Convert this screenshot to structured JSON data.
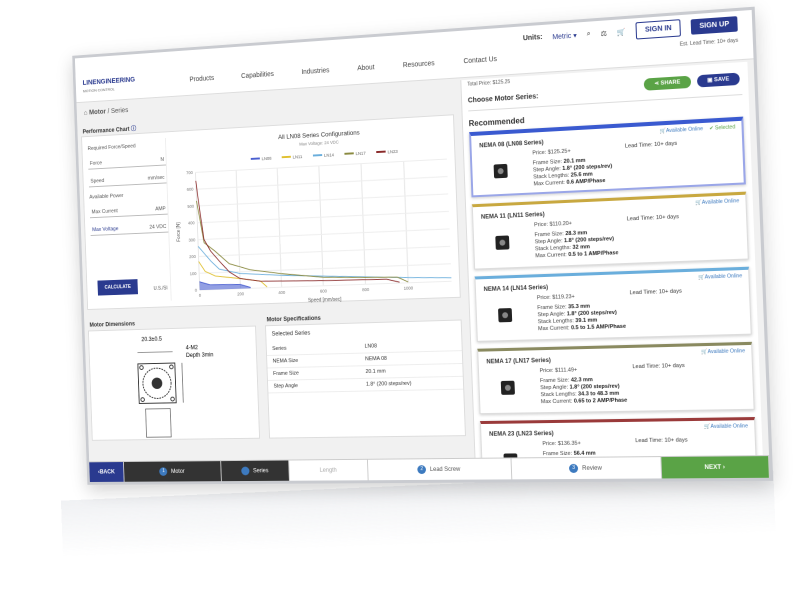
{
  "header": {
    "logo": "LINENGINEERING",
    "logo_sub": "MOTION CONTROL",
    "nav": [
      "Products",
      "Capabilities",
      "Industries",
      "About",
      "Resources",
      "Contact Us"
    ],
    "units_label": "Units:",
    "units_value": "Metric",
    "sign_in": "SIGN IN",
    "sign_up": "SIGN UP",
    "lead_time": "Est. Lead Time: 10+ days"
  },
  "breadcrumb": {
    "home": "Motor",
    "current": "Series"
  },
  "performance": {
    "title": "Performance Chart",
    "form": {
      "heading": "Required Force/Speed",
      "force_label": "Force",
      "force_unit": "N",
      "speed_label": "Speed",
      "speed_unit": "mm/sec",
      "avail_heading": "Available Power",
      "current_label": "Max Current",
      "current_unit": "AMP",
      "voltage_label": "Max Voltage",
      "voltage_value": "24 VDC",
      "calculate": "CALCULATE",
      "units": "U.S./SI"
    }
  },
  "chart_data": {
    "type": "line",
    "title": "All LN08 Series Configurations",
    "subtitle": "Max Voltage: 24 VDC",
    "xlabel": "Speed [mm/sec]",
    "ylabel": "Force [N]",
    "xlim": [
      0,
      1200
    ],
    "ylim": [
      0,
      700
    ],
    "xticks": [
      0,
      200,
      400,
      600,
      800,
      1000
    ],
    "yticks": [
      0,
      100,
      200,
      300,
      400,
      500,
      600,
      700
    ],
    "grid": true,
    "legend": "top",
    "series": [
      {
        "name": "LN08",
        "color": "#4a5fd0",
        "area": true,
        "points": [
          [
            0,
            50
          ],
          [
            50,
            30
          ],
          [
            200,
            25
          ],
          [
            250,
            5
          ]
        ]
      },
      {
        "name": "LN11",
        "color": "#e0c030",
        "points": [
          [
            0,
            170
          ],
          [
            30,
            110
          ],
          [
            80,
            80
          ],
          [
            200,
            60
          ],
          [
            300,
            40
          ],
          [
            330,
            5
          ]
        ]
      },
      {
        "name": "LN14",
        "color": "#6aaedc",
        "points": [
          [
            0,
            260
          ],
          [
            20,
            230
          ],
          [
            60,
            170
          ],
          [
            100,
            120
          ],
          [
            200,
            90
          ],
          [
            400,
            70
          ],
          [
            700,
            50
          ],
          [
            1000,
            30
          ],
          [
            1200,
            20
          ]
        ]
      },
      {
        "name": "LN17",
        "color": "#8a8a40",
        "points": [
          [
            0,
            530
          ],
          [
            30,
            280
          ],
          [
            80,
            230
          ],
          [
            150,
            150
          ],
          [
            250,
            110
          ],
          [
            400,
            80
          ],
          [
            600,
            50
          ],
          [
            800,
            40
          ],
          [
            950,
            35
          ],
          [
            1000,
            5
          ]
        ]
      },
      {
        "name": "LN23",
        "color": "#8a2a2a",
        "points": [
          [
            0,
            650
          ],
          [
            10,
            520
          ],
          [
            30,
            300
          ],
          [
            60,
            230
          ],
          [
            100,
            170
          ],
          [
            150,
            100
          ],
          [
            200,
            60
          ],
          [
            300,
            40
          ],
          [
            600,
            30
          ],
          [
            900,
            25
          ],
          [
            960,
            5
          ]
        ]
      }
    ]
  },
  "dimensions": {
    "title": "Motor Dimensions",
    "d1": "20.3±0.5",
    "d2": "4-M2",
    "d3": "Depth 3min"
  },
  "specs": {
    "title": "Motor Specifications",
    "heading": "Selected Series",
    "rows": [
      [
        "Series",
        "LN08"
      ],
      [
        "NEMA Size",
        "NEMA 08"
      ],
      [
        "Frame Size",
        "20.1 mm"
      ],
      [
        "Step Angle",
        "1.8° (200 steps/rev)"
      ]
    ]
  },
  "right": {
    "total_price": "Total Price: $125.25",
    "share": "SHARE",
    "save": "SAVE",
    "choose": "Choose Motor Series:",
    "recommended": "Recommended",
    "available": "Available Online",
    "selected": "Selected",
    "cards": [
      {
        "title": "NEMA 08 (LN08 Series)",
        "color": "#3a5ad0",
        "price": "Price: $125.25+",
        "lead": "Lead Time: 10+ days",
        "frame": "20.1 mm",
        "step": "1.8° (200 steps/rev)",
        "stack": "25.6 mm",
        "current": "0.6 AMP/Phase"
      },
      {
        "title": "NEMA 11 (LN11 Series)",
        "color": "#c8a840",
        "price": "Price: $110.20+",
        "lead": "Lead Time: 10+ days",
        "frame": "28.3 mm",
        "step": "1.8° (200 steps/rev)",
        "stack": "32 mm",
        "current": "0.5 to 1 AMP/Phase"
      },
      {
        "title": "NEMA 14 (LN14 Series)",
        "color": "#6aaedc",
        "price": "Price: $119.23+",
        "lead": "Lead Time: 10+ days",
        "frame": "35.3 mm",
        "step": "1.8° (200 steps/rev)",
        "stack": "39.1 mm",
        "current": "0.5 to 1.5 AMP/Phase"
      },
      {
        "title": "NEMA 17 (LN17 Series)",
        "color": "#8a8a60",
        "price": "Price: $111.49+",
        "lead": "Lead Time: 10+ days",
        "frame": "42.3 mm",
        "step": "1.8° (200 steps/rev)",
        "stack": "34.3 to 48.3 mm",
        "current": "0.65 to 2 AMP/Phase"
      },
      {
        "title": "NEMA 23 (LN23 Series)",
        "color": "#9a3a3a",
        "price": "Price: $136.35+",
        "lead": "Lead Time: 10+ days",
        "frame": "56.4 mm",
        "step": "1.8° (200 steps/rev)",
        "stack": "45 to 78 mm",
        "current": ""
      }
    ],
    "labels": {
      "frame": "Frame Size:",
      "step": "Step Angle:",
      "stack": "Stack Lengths:",
      "current": "Max Current:"
    }
  },
  "footer": {
    "back": "BACK",
    "steps": [
      {
        "n": "1",
        "label": "Motor"
      },
      {
        "n": "",
        "label": "Series"
      },
      {
        "n": "",
        "label": "Length"
      },
      {
        "n": "2",
        "label": "Lead Screw"
      },
      {
        "n": "3",
        "label": "Review"
      }
    ],
    "next": "NEXT"
  }
}
